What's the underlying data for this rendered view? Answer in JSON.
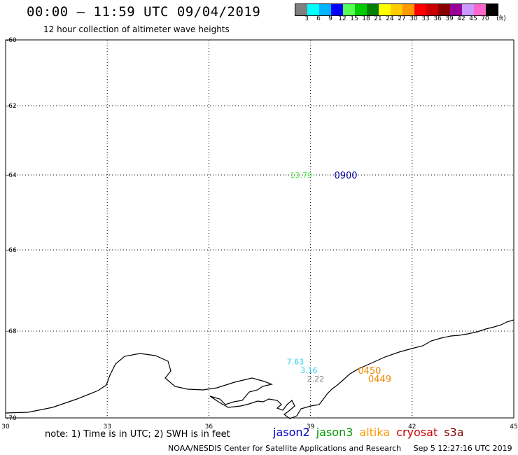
{
  "header": {
    "title": "00:00 – 11:59 UTC 09/04/2019",
    "subtitle": "12 hour collection of altimeter wave heights"
  },
  "legend": {
    "colors": [
      "#808080",
      "#00ffff",
      "#00b4ff",
      "#0000ff",
      "#55ff55",
      "#00cc00",
      "#008000",
      "#ffff00",
      "#ffcc00",
      "#ff9900",
      "#ff0000",
      "#cc0000",
      "#880000",
      "#990099",
      "#cc99ff",
      "#ff66cc",
      "#000000"
    ],
    "labels": [
      "3",
      "6",
      "9",
      "12",
      "15",
      "18",
      "21",
      "24",
      "27",
      "30",
      "33",
      "36",
      "39",
      "42",
      "45",
      "70",
      "(ft)"
    ]
  },
  "map": {
    "lon_range": [
      30,
      45
    ],
    "lat_range": [
      -60,
      -70
    ],
    "lon_ticks": [
      "30",
      "33",
      "36",
      "39",
      "42",
      "45"
    ],
    "lat_ticks": [
      "-60",
      "-62",
      "-64",
      "-66",
      "-68",
      "-70"
    ],
    "observations": [
      {
        "lon": 38.4,
        "lat": -64.0,
        "value": "13.79",
        "color": "#55ee55"
      },
      {
        "lon": 38.3,
        "lat": -68.7,
        "value": "7.63",
        "color": "#33ccee"
      },
      {
        "lon": 38.7,
        "lat": -68.9,
        "value": "3.16",
        "color": "#33ccee"
      },
      {
        "lon": 38.9,
        "lat": -69.1,
        "value": "2.22",
        "color": "#808080"
      }
    ],
    "times": [
      {
        "lon": 39.7,
        "lat": -64.0,
        "value": "0900",
        "color": "#000099"
      },
      {
        "lon": 40.4,
        "lat": -68.9,
        "value": "0450",
        "color": "#ee8800"
      },
      {
        "lon": 40.7,
        "lat": -69.1,
        "value": "0449",
        "color": "#ee8800"
      }
    ]
  },
  "footer": {
    "note": "note:  1) Time is in UTC;  2) SWH is in feet",
    "satellites": [
      {
        "name": "jason2",
        "color": "#0000cc"
      },
      {
        "name": "jason3",
        "color": "#009900"
      },
      {
        "name": "altika",
        "color": "#ff9900"
      },
      {
        "name": "cryosat",
        "color": "#cc0000"
      },
      {
        "name": "s3a",
        "color": "#880000"
      }
    ],
    "credit": "NOAA/NESDIS Center for Satellite Applications and Research",
    "timestamp": "Sep  5 12:27:16 UTC 2019"
  }
}
